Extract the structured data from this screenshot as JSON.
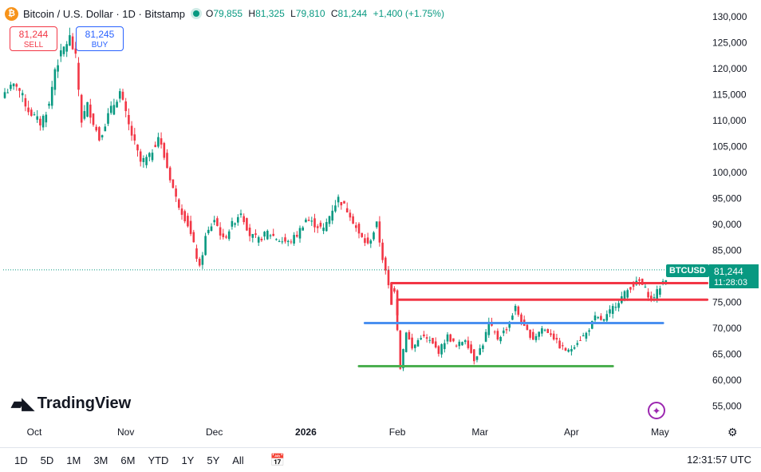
{
  "header": {
    "coin_icon": "bitcoin-icon",
    "coin_symbol": "₿",
    "title": "Bitcoin / U.S. Dollar · 1D · Bitstamp",
    "open_label": "O",
    "open": "79,855",
    "high_label": "H",
    "high": "81,325",
    "low_label": "L",
    "low": "79,810",
    "close_label": "C",
    "close": "81,244",
    "change": "+1,400 (+1.75%)"
  },
  "trade": {
    "sell_price": "81,244",
    "sell_label": "SELL",
    "buy_price": "81,245",
    "buy_label": "BUY"
  },
  "price_tag": {
    "symbol": "BTCUSD",
    "price": "81,244",
    "countdown": "11:28:03"
  },
  "logo": {
    "text": "TradingView"
  },
  "timeframes": [
    "1D",
    "5D",
    "1M",
    "3M",
    "6M",
    "YTD",
    "1Y",
    "5Y",
    "All"
  ],
  "clock": "12:31:57 UTC",
  "colors": {
    "up": "#089981",
    "down": "#f23645",
    "red_line": "#f23645",
    "blue_line": "#4a90f0",
    "green_line": "#4caf50"
  },
  "chart_data": {
    "type": "candlestick",
    "symbol": "BTCUSD",
    "timeframe": "1D",
    "ylim": [
      52000,
      131000
    ],
    "y_ticks": [
      55000,
      60000,
      65000,
      70000,
      75000,
      80000,
      85000,
      90000,
      95000,
      100000,
      105000,
      110000,
      115000,
      120000,
      125000,
      130000
    ],
    "y_tick_labels": [
      "55,000",
      "60,000",
      "65,000",
      "70,000",
      "75,000",
      "80,000",
      "85,000",
      "90,000",
      "95,000",
      "100,000",
      "105,000",
      "110,000",
      "115,000",
      "120,000",
      "125,000",
      "130,000"
    ],
    "x_labels": [
      {
        "label": "Oct",
        "idx": 10,
        "bold": false
      },
      {
        "label": "Nov",
        "idx": 41,
        "bold": false
      },
      {
        "label": "Dec",
        "idx": 71,
        "bold": false
      },
      {
        "label": "2026",
        "idx": 102,
        "bold": true
      },
      {
        "label": "Feb",
        "idx": 133,
        "bold": false
      },
      {
        "label": "Mar",
        "idx": 161,
        "bold": false
      },
      {
        "label": "Apr",
        "idx": 192,
        "bold": false
      },
      {
        "label": "May",
        "idx": 222,
        "bold": false
      }
    ],
    "last_price": 81244,
    "key_closes": [
      [
        0,
        115500
      ],
      [
        4,
        117000
      ],
      [
        8,
        112000
      ],
      [
        12,
        109500
      ],
      [
        15,
        113000
      ],
      [
        17,
        120000
      ],
      [
        20,
        124000
      ],
      [
        22,
        126000
      ],
      [
        24,
        122000
      ],
      [
        26,
        110000
      ],
      [
        28,
        113000
      ],
      [
        32,
        106500
      ],
      [
        35,
        111000
      ],
      [
        39,
        115500
      ],
      [
        42,
        109000
      ],
      [
        46,
        102000
      ],
      [
        49,
        103000
      ],
      [
        52,
        107000
      ],
      [
        54,
        103000
      ],
      [
        58,
        95000
      ],
      [
        62,
        90000
      ],
      [
        64,
        86000
      ],
      [
        66,
        81500
      ],
      [
        68,
        87500
      ],
      [
        71,
        91000
      ],
      [
        74,
        87000
      ],
      [
        77,
        90000
      ],
      [
        80,
        92500
      ],
      [
        83,
        88000
      ],
      [
        86,
        87000
      ],
      [
        89,
        88500
      ],
      [
        93,
        87000
      ],
      [
        96,
        86500
      ],
      [
        99,
        88000
      ],
      [
        102,
        91000
      ],
      [
        105,
        90000
      ],
      [
        108,
        89000
      ],
      [
        111,
        93000
      ],
      [
        113,
        95000
      ],
      [
        117,
        92000
      ],
      [
        120,
        88000
      ],
      [
        123,
        86000
      ],
      [
        126,
        90000
      ],
      [
        128,
        83500
      ],
      [
        130,
        78000
      ],
      [
        132,
        77500
      ],
      [
        134,
        62500
      ],
      [
        136,
        69500
      ],
      [
        138,
        66000
      ],
      [
        141,
        68500
      ],
      [
        144,
        67500
      ],
      [
        147,
        65500
      ],
      [
        150,
        68500
      ],
      [
        153,
        66500
      ],
      [
        156,
        68000
      ],
      [
        159,
        64000
      ],
      [
        162,
        67000
      ],
      [
        164,
        71000
      ],
      [
        167,
        68000
      ],
      [
        170,
        70000
      ],
      [
        173,
        74000
      ],
      [
        176,
        70000
      ],
      [
        179,
        68000
      ],
      [
        182,
        70000
      ],
      [
        185,
        69000
      ],
      [
        188,
        66500
      ],
      [
        191,
        65500
      ],
      [
        194,
        67500
      ],
      [
        197,
        69000
      ],
      [
        200,
        72000
      ],
      [
        203,
        71500
      ],
      [
        206,
        74000
      ],
      [
        209,
        76000
      ],
      [
        212,
        78000
      ],
      [
        215,
        79000
      ],
      [
        217,
        77500
      ],
      [
        219,
        75500
      ],
      [
        221,
        77000
      ],
      [
        223,
        79000
      ],
      [
        226,
        81244
      ]
    ],
    "lines": [
      {
        "color": "red",
        "price": 78700,
        "from_idx": 131,
        "to_idx": 238,
        "vertical_to": 74500
      },
      {
        "color": "red",
        "price": 75500,
        "from_idx": 133,
        "to_idx": 238,
        "vertical_to": 72500
      },
      {
        "color": "blue",
        "price": 71000,
        "from_idx": 122,
        "to_idx": 223
      },
      {
        "color": "green",
        "price": 62700,
        "from_idx": 120,
        "to_idx": 206
      }
    ]
  }
}
